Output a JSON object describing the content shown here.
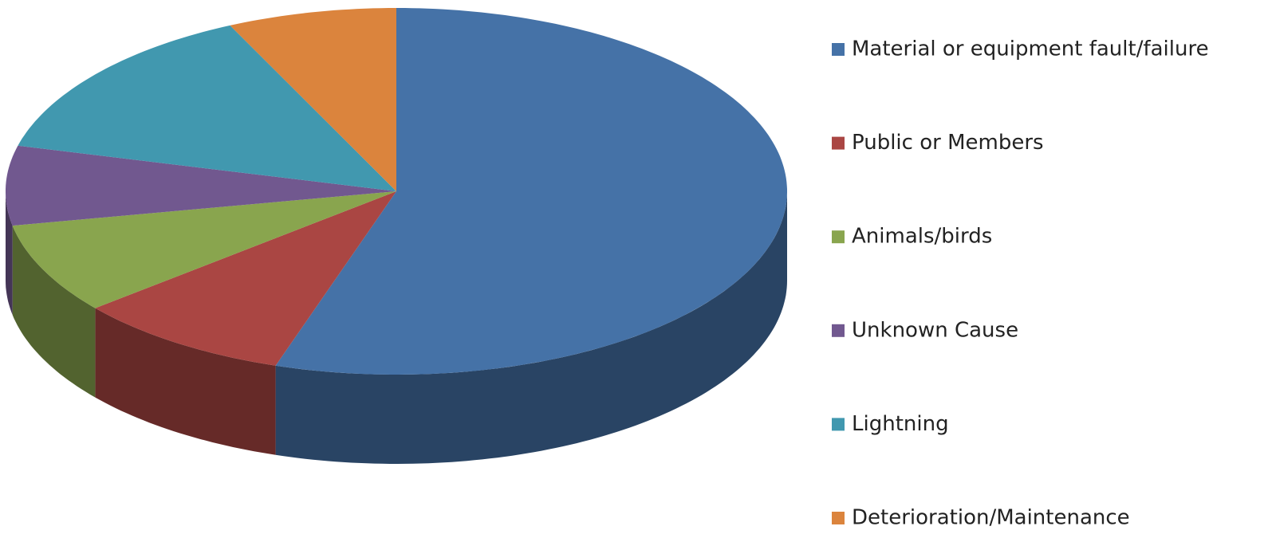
{
  "chart_data": {
    "type": "pie",
    "title": null,
    "categories": [
      "Material or equipment fault/failure",
      "Public or Members",
      "Animals/birds",
      "Unknown Cause",
      "Lightning",
      "Deterioration/Maintenance"
    ],
    "values": [
      55,
      9,
      8,
      7,
      14,
      7
    ],
    "colors": [
      "#4572a7",
      "#aa4643",
      "#89a54e",
      "#71588f",
      "#4198af",
      "#db843d"
    ],
    "legend": "right"
  }
}
